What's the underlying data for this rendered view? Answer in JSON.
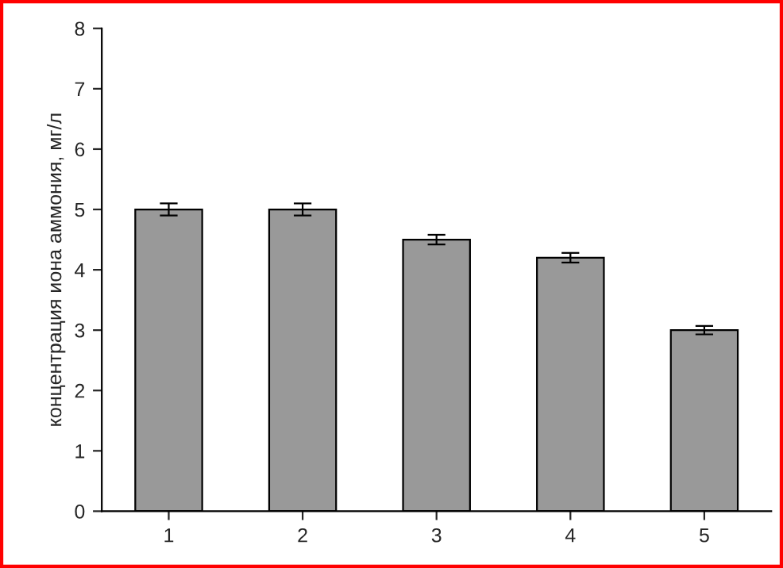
{
  "chart_data": {
    "type": "bar",
    "ylabel": "концентрация иона аммония, мг/л",
    "categories": [
      "1",
      "2",
      "3",
      "4",
      "5"
    ],
    "series": [
      {
        "color": "#999999",
        "values": [
          5.0,
          5.0,
          4.5,
          4.2,
          3.0
        ],
        "errors": [
          0.1,
          0.1,
          0.08,
          0.08,
          0.07
        ]
      }
    ],
    "ylim": [
      0,
      8
    ],
    "yticks": [
      0,
      1,
      2,
      3,
      4,
      5,
      6,
      7,
      8
    ],
    "grid": false,
    "legend": false
  }
}
